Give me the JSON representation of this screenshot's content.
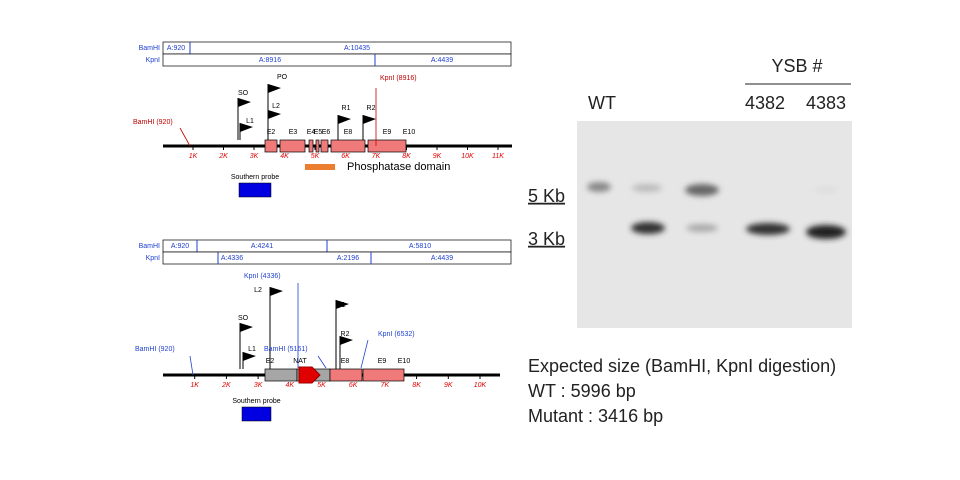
{
  "map1": {
    "rows": [
      {
        "enzyme": "BamHI",
        "fragments": [
          "A:920",
          "A:10435"
        ]
      },
      {
        "enzyme": "KpnI",
        "fragments": [
          "A:8916",
          "A:4439"
        ]
      }
    ],
    "primers": [
      "SO",
      "PO",
      "L2",
      "L1",
      "R1",
      "R2"
    ],
    "sites": [
      "KpnI (8916)",
      "BamHI (920)"
    ],
    "exons": [
      "E2",
      "E3",
      "E4",
      "E5",
      "E6",
      "E8",
      "E9",
      "E10"
    ],
    "axis": [
      "1K",
      "2K",
      "3K",
      "4K",
      "5K",
      "6K",
      "7K",
      "8K",
      "9K",
      "10K",
      "11K"
    ],
    "domain": "Phosphatase domain",
    "probe": "Southern probe"
  },
  "map2": {
    "rows": [
      {
        "enzyme": "BamHI",
        "fragments": [
          "A:920",
          "A:4241",
          "A:5810"
        ]
      },
      {
        "enzyme": "KpnI",
        "fragments": [
          "A:4336",
          "A:2196",
          "A:4439"
        ]
      }
    ],
    "primers": [
      "L2",
      "SO",
      "L1",
      "R1",
      "R2"
    ],
    "sites": [
      "KpnI (4336)",
      "BamHI (5161)",
      "KpnI (6532)",
      "BamHI (920)"
    ],
    "exons": [
      "E2",
      "NAT",
      "E8",
      "E9",
      "E10"
    ],
    "axis": [
      "1K",
      "2K",
      "3K",
      "4K",
      "5K",
      "6K",
      "7K",
      "8K",
      "9K",
      "10K"
    ],
    "probe": "Southern probe"
  },
  "gel": {
    "group": "YSB #",
    "lanes": [
      "WT",
      "4382",
      "4383"
    ],
    "markers": [
      "5 Kb",
      "3 Kb"
    ]
  },
  "note": {
    "title": "Expected size (BamHI, KpnI digestion)",
    "lines": [
      "WT : 5996 bp",
      "Mutant : 3416 bp"
    ]
  }
}
